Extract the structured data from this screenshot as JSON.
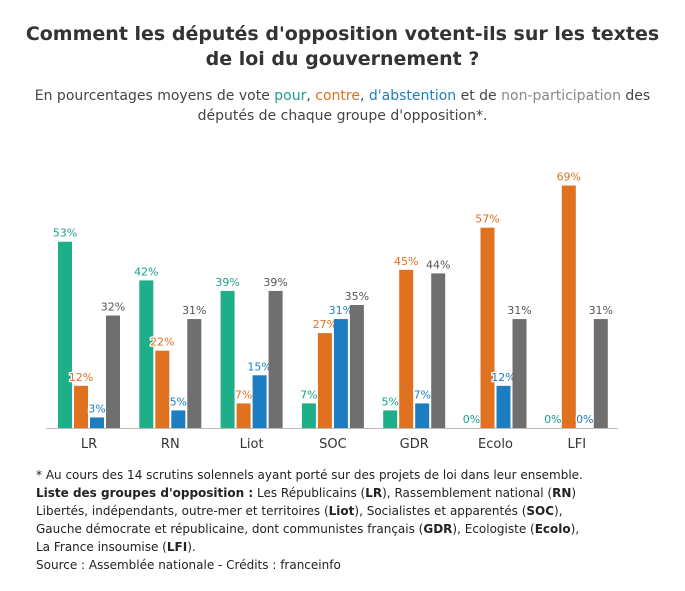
{
  "title": "Comment les députés d'opposition votent-ils sur les textes de loi du gouvernement ?",
  "subtitle": {
    "prefix": "En pourcentages moyens de vote ",
    "pour": "pour",
    "sep1": ", ",
    "contre": "contre",
    "sep2": ", ",
    "abstention": "d'abstention",
    "sep3": " et de ",
    "non_participation": "non-participation",
    "suffix": " des députés de chaque groupe d'opposition*."
  },
  "colors": {
    "pour": "#1fae8a",
    "contre": "#e0711f",
    "abstention": "#1c7ec0",
    "non_participation": "#6f6f6f",
    "axis": "#bbbbbb"
  },
  "chart_data": {
    "type": "bar",
    "categories": [
      "LR",
      "RN",
      "Liot",
      "SOC",
      "GDR",
      "Ecolo",
      "LFI"
    ],
    "series": [
      {
        "name": "pour",
        "values": [
          53,
          42,
          39,
          7,
          5,
          0,
          0
        ],
        "labels": [
          "53%",
          "42%",
          "39%",
          "7%",
          "5%",
          "0%",
          "0%"
        ]
      },
      {
        "name": "contre",
        "values": [
          12,
          22,
          7,
          27,
          45,
          57,
          69
        ],
        "labels": [
          "12%",
          "22%",
          "7%",
          "27%",
          "45%",
          "57%",
          "69%"
        ]
      },
      {
        "name": "d'abstention",
        "values": [
          3,
          5,
          15,
          31,
          7,
          12,
          0
        ],
        "labels": [
          "3%",
          "5%",
          "15%",
          "31%",
          "7%",
          "12%",
          "0%"
        ]
      },
      {
        "name": "non-participation",
        "values": [
          32,
          31,
          39,
          35,
          44,
          31,
          31
        ],
        "labels": [
          "32%",
          "31%",
          "39%",
          "35%",
          "44%",
          "31%",
          "31%"
        ]
      }
    ],
    "ylim": [
      0,
      70
    ],
    "grid": false,
    "legend": "none"
  },
  "footer": {
    "note": "* Au cours des 14 scrutins solennels ayant porté sur des projets de loi dans leur ensemble.",
    "list_heading": "Liste des groupes d'opposition :",
    "groups": [
      {
        "name": " Les Républicains (",
        "abbr": "LR",
        "end": "), "
      },
      {
        "name": "Rassemblement national (",
        "abbr": "RN",
        "end": ") "
      },
      {
        "name": "Libertés, indépendants, outre-mer et territoires (",
        "abbr": "Liot",
        "end": "), "
      },
      {
        "name": "Socialistes et apparentés (",
        "abbr": "SOC",
        "end": "), "
      },
      {
        "name": "Gauche démocrate et républicaine, dont communistes français (",
        "abbr": "GDR",
        "end": "), "
      },
      {
        "name": "Ecologiste (",
        "abbr": "Ecolo",
        "end": "), "
      },
      {
        "name": "La France insoumise (",
        "abbr": "LFI",
        "end": ")."
      }
    ],
    "source": "Source : Assemblée nationale - Crédits : franceinfo"
  }
}
